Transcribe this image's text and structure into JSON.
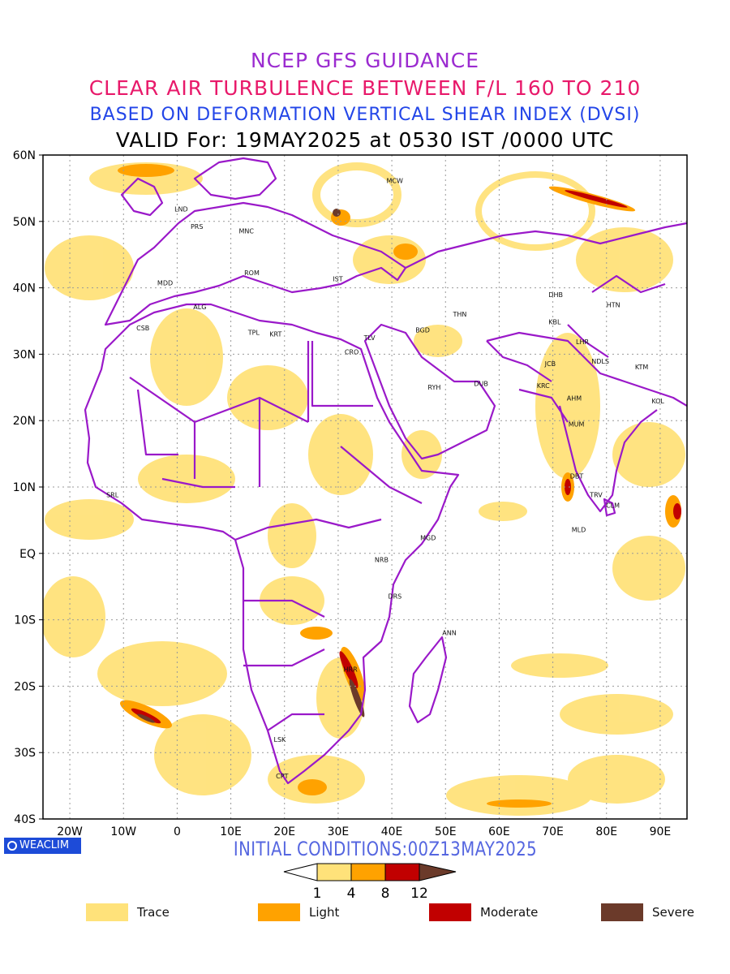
{
  "titles": {
    "line1": "NCEP GFS GUIDANCE",
    "line2": "CLEAR AIR TURBULENCE BETWEEN F/L 160 TO 210",
    "line3": "BASED ON DEFORMATION VERTICAL SHEAR INDEX (DVSI)",
    "line4": "VALID For: 19MAY2025 at 0530 IST /0000 UTC"
  },
  "initial_conditions": "INITIAL CONDITIONS:00Z13MAY2025",
  "brand": "WEACLIM",
  "lat_labels": [
    "60N",
    "50N",
    "40N",
    "30N",
    "20N",
    "10N",
    "EQ",
    "10S",
    "20S",
    "30S",
    "40S"
  ],
  "lon_labels": [
    "20W",
    "10W",
    "0",
    "10E",
    "20E",
    "30E",
    "40E",
    "50E",
    "60E",
    "70E",
    "80E",
    "90E"
  ],
  "stations": [
    {
      "code": "MCW",
      "lon": 39,
      "lat": 55.8
    },
    {
      "code": "LND",
      "lon": -0.5,
      "lat": 51.5
    },
    {
      "code": "PRS",
      "lon": 2.5,
      "lat": 48.9
    },
    {
      "code": "MNC",
      "lon": 11.5,
      "lat": 48.2
    },
    {
      "code": "ROM",
      "lon": 12.5,
      "lat": 41.9
    },
    {
      "code": "MDD",
      "lon": -3.7,
      "lat": 40.4
    },
    {
      "code": "IST",
      "lon": 29,
      "lat": 41
    },
    {
      "code": "ALG",
      "lon": 3,
      "lat": 36.8
    },
    {
      "code": "CSB",
      "lon": -7.6,
      "lat": 33.6
    },
    {
      "code": "TPL",
      "lon": 13.2,
      "lat": 32.9
    },
    {
      "code": "KRT",
      "lon": 17.2,
      "lat": 32.7
    },
    {
      "code": "TLV",
      "lon": 34.8,
      "lat": 32.1
    },
    {
      "code": "BGD",
      "lon": 44.4,
      "lat": 33.3
    },
    {
      "code": "THN",
      "lon": 51.4,
      "lat": 35.7
    },
    {
      "code": "CRO",
      "lon": 31.2,
      "lat": 30
    },
    {
      "code": "RYH",
      "lon": 46.7,
      "lat": 24.7
    },
    {
      "code": "DUB",
      "lon": 55.3,
      "lat": 25.2
    },
    {
      "code": "DHB",
      "lon": 69.2,
      "lat": 38.6
    },
    {
      "code": "HTN",
      "lon": 80,
      "lat": 37.1
    },
    {
      "code": "KBL",
      "lon": 69.2,
      "lat": 34.5
    },
    {
      "code": "JCB",
      "lon": 68.5,
      "lat": 28.2
    },
    {
      "code": "LHR",
      "lon": 74.3,
      "lat": 31.5
    },
    {
      "code": "NDLS",
      "lon": 77.2,
      "lat": 28.6
    },
    {
      "code": "KTM",
      "lon": 85.3,
      "lat": 27.7
    },
    {
      "code": "KRC",
      "lon": 67,
      "lat": 24.9
    },
    {
      "code": "AHM",
      "lon": 72.6,
      "lat": 23
    },
    {
      "code": "KOL",
      "lon": 88.4,
      "lat": 22.6
    },
    {
      "code": "MUM",
      "lon": 72.9,
      "lat": 19.1
    },
    {
      "code": "DBT",
      "lon": 73.2,
      "lat": 11.3
    },
    {
      "code": "TRV",
      "lon": 76.9,
      "lat": 8.5
    },
    {
      "code": "CLM",
      "lon": 79.9,
      "lat": 6.9
    },
    {
      "code": "MLD",
      "lon": 73.5,
      "lat": 3.2
    },
    {
      "code": "SRL",
      "lon": -13.2,
      "lat": 8.5
    },
    {
      "code": "MGD",
      "lon": 45.3,
      "lat": 2
    },
    {
      "code": "NRB",
      "lon": 36.8,
      "lat": -1.3
    },
    {
      "code": "DRS",
      "lon": 39.3,
      "lat": -6.8
    },
    {
      "code": "ANN",
      "lon": 49.4,
      "lat": -12.3
    },
    {
      "code": "HRR",
      "lon": 31,
      "lat": -17.8
    },
    {
      "code": "LSK",
      "lon": 18,
      "lat": -28.4
    },
    {
      "code": "CPT",
      "lon": 18.4,
      "lat": -33.9
    }
  ],
  "colorbar": {
    "ticks": [
      "1",
      "4",
      "8",
      "12"
    ],
    "colors": [
      "#ffe27a",
      "#ffa200",
      "#c10000",
      "#6b3a2a"
    ]
  },
  "legend": [
    {
      "label": "Trace",
      "color": "#ffe27a"
    },
    {
      "label": "Light",
      "color": "#ffa200"
    },
    {
      "label": "Moderate",
      "color": "#c10000"
    },
    {
      "label": "Severe",
      "color": "#6b3a2a"
    }
  ],
  "colors": {
    "boundary": "#9a19c9",
    "trace": "#ffe27a",
    "light": "#ffa200",
    "moderate": "#c10000",
    "severe": "#6b3a2a"
  }
}
